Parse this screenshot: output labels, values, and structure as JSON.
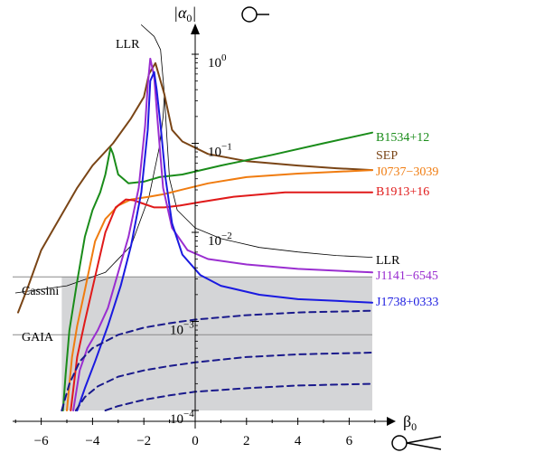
{
  "chart_data": {
    "type": "line",
    "title": "",
    "xlabel": "β0",
    "ylabel": "|α0|",
    "xlim": [
      -7,
      7
    ],
    "ylim_log10": [
      -4,
      0.5
    ],
    "x_ticks": [
      {
        "value": -6,
        "label": "−6"
      },
      {
        "value": -4,
        "label": "−4"
      },
      {
        "value": -2,
        "label": "−2"
      },
      {
        "value": 0,
        "label": "0"
      },
      {
        "value": 2,
        "label": "2"
      },
      {
        "value": 4,
        "label": "4"
      },
      {
        "value": 6,
        "label": "6"
      }
    ],
    "y_ticks": [
      {
        "log10": 0,
        "label": "10",
        "exp": "0"
      },
      {
        "log10": -1,
        "label": "10",
        "exp": "−1"
      },
      {
        "log10": -2,
        "label": "10",
        "exp": "−2"
      },
      {
        "log10": -3,
        "label": "10",
        "exp": "−3"
      },
      {
        "log10": -4,
        "label": "10",
        "exp": "−4"
      }
    ],
    "shaded_region": {
      "x_from": -5.2,
      "x_to": 6.9,
      "log10_from": -4,
      "log10_to": -2.5,
      "color": "#d4d5d7"
    },
    "reference_lines": [
      {
        "name": "Cassini",
        "log10": -2.5
      },
      {
        "name": "GAIA",
        "log10": -3.15
      }
    ],
    "series": [
      {
        "name": "LLR",
        "role": "llr-thin",
        "color": "#000000",
        "width": 0.8,
        "dash": "",
        "points": [
          [
            -7,
            -2.68
          ],
          [
            -5,
            -2.6
          ],
          [
            -3.5,
            -2.45
          ],
          [
            -2.5,
            -2.15
          ],
          [
            -1.8,
            -1.6
          ],
          [
            -1.4,
            -1.05
          ],
          [
            -1.25,
            -0.7
          ],
          [
            -1.2,
            -0.45
          ],
          [
            -1.35,
            0.05
          ],
          [
            -1.6,
            0.2
          ],
          [
            -2.1,
            0.33
          ]
        ]
      },
      {
        "name": "LLR",
        "role": "llr-thin-right",
        "color": "#000000",
        "width": 0.8,
        "dash": "",
        "points": [
          [
            -1.2,
            -0.45
          ],
          [
            -1.1,
            -0.95
          ],
          [
            -1.0,
            -1.4
          ],
          [
            -0.7,
            -1.75
          ],
          [
            0,
            -1.95
          ],
          [
            1,
            -2.07
          ],
          [
            2.5,
            -2.17
          ],
          [
            4,
            -2.22
          ],
          [
            5.5,
            -2.26
          ],
          [
            6.9,
            -2.28
          ]
        ]
      },
      {
        "name": "SEP",
        "color": "#7a4516",
        "width": 2,
        "dash": "",
        "points": [
          [
            -6.9,
            -2.9
          ],
          [
            -6.5,
            -2.6
          ],
          [
            -6,
            -2.2
          ],
          [
            -5.3,
            -1.85
          ],
          [
            -4.6,
            -1.5
          ],
          [
            -4,
            -1.25
          ],
          [
            -3.2,
            -1.0
          ],
          [
            -2.5,
            -0.72
          ],
          [
            -2.0,
            -0.48
          ],
          [
            -1.8,
            -0.22
          ],
          [
            -1.55,
            -0.1
          ],
          [
            -1.2,
            -0.45
          ],
          [
            -0.9,
            -0.85
          ],
          [
            -0.5,
            -0.98
          ],
          [
            0.5,
            -1.12
          ],
          [
            2,
            -1.2
          ],
          [
            4,
            -1.25
          ],
          [
            5.5,
            -1.28
          ],
          [
            6.9,
            -1.3
          ]
        ]
      },
      {
        "name": "B1534+12",
        "color": "#1a8c1a",
        "width": 2,
        "dash": "",
        "points": [
          [
            -5.15,
            -4
          ],
          [
            -5.05,
            -3.6
          ],
          [
            -4.9,
            -3.1
          ],
          [
            -4.6,
            -2.55
          ],
          [
            -4.3,
            -2.05
          ],
          [
            -4.0,
            -1.75
          ],
          [
            -3.7,
            -1.55
          ],
          [
            -3.5,
            -1.35
          ],
          [
            -3.3,
            -1.05
          ],
          [
            -3.2,
            -1.12
          ],
          [
            -3.0,
            -1.35
          ],
          [
            -2.6,
            -1.45
          ],
          [
            -2.0,
            -1.43
          ],
          [
            -1.4,
            -1.38
          ],
          [
            -0.5,
            -1.35
          ],
          [
            1,
            -1.25
          ],
          [
            3,
            -1.13
          ],
          [
            5,
            -1.0
          ],
          [
            6.9,
            -0.88
          ]
        ]
      },
      {
        "name": "J0737−3039",
        "color": "#f07c10",
        "width": 2,
        "dash": "",
        "points": [
          [
            -5.0,
            -4
          ],
          [
            -4.8,
            -3.4
          ],
          [
            -4.6,
            -3.05
          ],
          [
            -4.3,
            -2.65
          ],
          [
            -3.9,
            -2.1
          ],
          [
            -3.5,
            -1.85
          ],
          [
            -3.0,
            -1.7
          ],
          [
            -2.5,
            -1.63
          ],
          [
            -1.8,
            -1.6
          ],
          [
            -1.2,
            -1.57
          ],
          [
            -0.5,
            -1.52
          ],
          [
            0.5,
            -1.45
          ],
          [
            2,
            -1.38
          ],
          [
            4,
            -1.34
          ],
          [
            5.5,
            -1.32
          ],
          [
            6.9,
            -1.3
          ]
        ]
      },
      {
        "name": "B1913+16",
        "color": "#e01a1a",
        "width": 2,
        "dash": "",
        "points": [
          [
            -4.85,
            -4
          ],
          [
            -4.6,
            -3.4
          ],
          [
            -4.3,
            -3.0
          ],
          [
            -3.9,
            -2.5
          ],
          [
            -3.5,
            -2.0
          ],
          [
            -3.1,
            -1.72
          ],
          [
            -2.7,
            -1.63
          ],
          [
            -2.4,
            -1.64
          ],
          [
            -2.0,
            -1.68
          ],
          [
            -1.6,
            -1.72
          ],
          [
            -1.2,
            -1.72
          ],
          [
            -0.6,
            -1.7
          ],
          [
            0.2,
            -1.66
          ],
          [
            1.5,
            -1.6
          ],
          [
            3.5,
            -1.55
          ],
          [
            5.5,
            -1.55
          ],
          [
            6.9,
            -1.55
          ]
        ]
      },
      {
        "name": "J1141−6545",
        "color": "#9a2ed0",
        "width": 2,
        "dash": "",
        "points": [
          [
            -4.75,
            -4
          ],
          [
            -4.5,
            -3.55
          ],
          [
            -4.2,
            -3.3
          ],
          [
            -3.8,
            -3.1
          ],
          [
            -3.4,
            -2.85
          ],
          [
            -3.0,
            -2.45
          ],
          [
            -2.6,
            -2.05
          ],
          [
            -2.2,
            -1.5
          ],
          [
            -1.95,
            -0.8
          ],
          [
            -1.85,
            -0.35
          ],
          [
            -1.75,
            -0.05
          ],
          [
            -1.6,
            -0.25
          ],
          [
            -1.45,
            -0.8
          ],
          [
            -1.25,
            -1.5
          ],
          [
            -0.9,
            -1.95
          ],
          [
            -0.3,
            -2.2
          ],
          [
            0.5,
            -2.3
          ],
          [
            2,
            -2.36
          ],
          [
            4,
            -2.41
          ],
          [
            6.9,
            -2.45
          ]
        ]
      },
      {
        "name": "J1738+0333",
        "color": "#1a1ae0",
        "width": 2,
        "dash": "",
        "points": [
          [
            -4.6,
            -4
          ],
          [
            -4.3,
            -3.75
          ],
          [
            -3.9,
            -3.45
          ],
          [
            -3.4,
            -3.05
          ],
          [
            -2.9,
            -2.6
          ],
          [
            -2.5,
            -2.15
          ],
          [
            -2.1,
            -1.55
          ],
          [
            -1.85,
            -0.85
          ],
          [
            -1.75,
            -0.3
          ],
          [
            -1.6,
            -0.2
          ],
          [
            -1.5,
            -0.4
          ],
          [
            -1.35,
            -0.8
          ],
          [
            -1.15,
            -1.4
          ],
          [
            -0.9,
            -1.9
          ],
          [
            -0.5,
            -2.25
          ],
          [
            0.2,
            -2.48
          ],
          [
            1,
            -2.6
          ],
          [
            2.5,
            -2.7
          ],
          [
            4,
            -2.75
          ],
          [
            5.5,
            -2.77
          ],
          [
            6.9,
            -2.79
          ]
        ]
      },
      {
        "name": "future-1",
        "color": "#1a1a8c",
        "width": 2,
        "dash": "7 5",
        "points": [
          [
            -5.2,
            -4
          ],
          [
            -4.9,
            -3.7
          ],
          [
            -4.5,
            -3.45
          ],
          [
            -4,
            -3.3
          ],
          [
            -3,
            -3.15
          ],
          [
            -2,
            -3.07
          ],
          [
            -1,
            -3.02
          ],
          [
            0,
            -2.98
          ],
          [
            2,
            -2.93
          ],
          [
            4,
            -2.9
          ],
          [
            6.9,
            -2.88
          ]
        ]
      },
      {
        "name": "future-2",
        "color": "#1a1a8c",
        "width": 2,
        "dash": "7 5",
        "points": [
          [
            -4.65,
            -4
          ],
          [
            -4.3,
            -3.85
          ],
          [
            -3.8,
            -3.73
          ],
          [
            -3,
            -3.62
          ],
          [
            -2,
            -3.55
          ],
          [
            -1,
            -3.5
          ],
          [
            0,
            -3.46
          ],
          [
            2,
            -3.4
          ],
          [
            4,
            -3.37
          ],
          [
            6.9,
            -3.35
          ]
        ]
      },
      {
        "name": "future-3",
        "color": "#1a1a8c",
        "width": 2,
        "dash": "7 5",
        "points": [
          [
            -3.5,
            -4
          ],
          [
            -3,
            -3.95
          ],
          [
            -2,
            -3.88
          ],
          [
            -1,
            -3.83
          ],
          [
            0,
            -3.79
          ],
          [
            2,
            -3.75
          ],
          [
            4,
            -3.72
          ],
          [
            6.9,
            -3.7
          ]
        ]
      }
    ],
    "labels": [
      {
        "id": "llr-top",
        "text": "LLR",
        "color": "#000000"
      },
      {
        "id": "b1534",
        "text": "B1534+12",
        "color": "#1a8c1a"
      },
      {
        "id": "sep",
        "text": "SEP",
        "color": "#7a4516"
      },
      {
        "id": "j0737",
        "text": "J0737−3039",
        "color": "#f07c10"
      },
      {
        "id": "b1913",
        "text": "B1913+16",
        "color": "#e01a1a"
      },
      {
        "id": "llr-right",
        "text": "LLR",
        "color": "#000000"
      },
      {
        "id": "j1141",
        "text": "J1141−6545",
        "color": "#9a2ed0"
      },
      {
        "id": "j1738",
        "text": "J1738+0333",
        "color": "#1a1ae0"
      },
      {
        "id": "cassini",
        "text": "Cassini",
        "color": "#000000"
      },
      {
        "id": "gaia",
        "text": "GAIA",
        "color": "#000000"
      }
    ]
  }
}
